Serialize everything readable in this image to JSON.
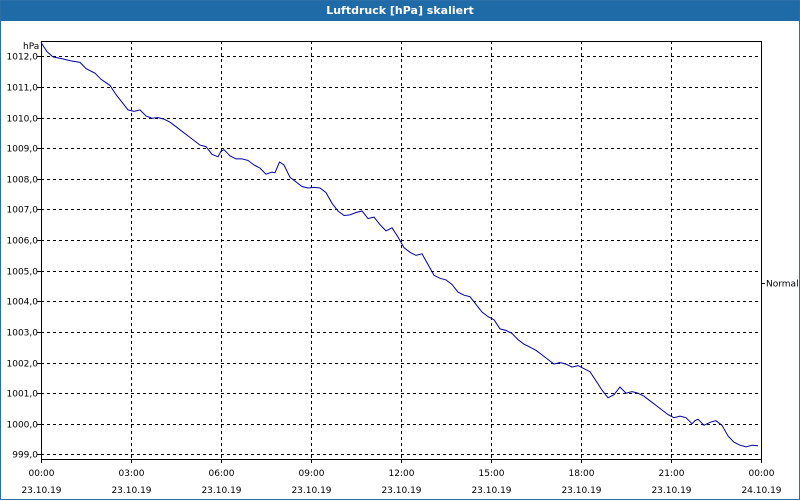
{
  "window": {
    "title": "Luftdruck [hPa] skaliert"
  },
  "colors": {
    "title_bar": "#1f6ba8",
    "series_line": "#0000a0",
    "grid": "#000000"
  },
  "chart_data": {
    "type": "line",
    "title": "Luftdruck [hPa] skaliert",
    "ylabel": "hPa",
    "xlabel": "",
    "ylim": [
      998.85,
      1012.5
    ],
    "xlim_hours": [
      0,
      24
    ],
    "grid": true,
    "y_ticks": [
      "999,0",
      "1000,0",
      "1001,0",
      "1002,0",
      "1003,0",
      "1004,0",
      "1005,0",
      "1006,0",
      "1007,0",
      "1008,0",
      "1009,0",
      "1010,0",
      "1011,0",
      "1012,0"
    ],
    "x_ticks": [
      {
        "time": "00:00",
        "date": "23.10.19"
      },
      {
        "time": "03:00",
        "date": "23.10.19"
      },
      {
        "time": "06:00",
        "date": "23.10.19"
      },
      {
        "time": "09:00",
        "date": "23.10.19"
      },
      {
        "time": "12:00",
        "date": "23.10.19"
      },
      {
        "time": "15:00",
        "date": "23.10.19"
      },
      {
        "time": "18:00",
        "date": "23.10.19"
      },
      {
        "time": "21:00",
        "date": "23.10.19"
      },
      {
        "time": "00:00",
        "date": "24.10.19"
      }
    ],
    "right_label": {
      "text": "Normal",
      "value": 1004.6
    },
    "series": [
      {
        "points": [
          [
            0.0,
            1012.45
          ],
          [
            0.2,
            1012.15
          ],
          [
            0.4,
            1011.98
          ],
          [
            0.7,
            1011.92
          ],
          [
            1.0,
            1011.85
          ],
          [
            1.3,
            1011.8
          ],
          [
            1.5,
            1011.6
          ],
          [
            1.8,
            1011.45
          ],
          [
            2.0,
            1011.25
          ],
          [
            2.3,
            1011.05
          ],
          [
            2.5,
            1010.75
          ],
          [
            2.7,
            1010.5
          ],
          [
            2.9,
            1010.25
          ],
          [
            3.1,
            1010.2
          ],
          [
            3.3,
            1010.25
          ],
          [
            3.5,
            1010.05
          ],
          [
            3.7,
            1009.98
          ],
          [
            3.9,
            1010.0
          ],
          [
            4.1,
            1009.95
          ],
          [
            4.3,
            1009.85
          ],
          [
            4.5,
            1009.7
          ],
          [
            4.7,
            1009.55
          ],
          [
            4.9,
            1009.4
          ],
          [
            5.1,
            1009.25
          ],
          [
            5.3,
            1009.1
          ],
          [
            5.5,
            1009.05
          ],
          [
            5.7,
            1008.8
          ],
          [
            5.9,
            1008.72
          ],
          [
            6.0,
            1008.9
          ],
          [
            6.1,
            1008.95
          ],
          [
            6.3,
            1008.75
          ],
          [
            6.5,
            1008.65
          ],
          [
            6.7,
            1008.65
          ],
          [
            6.9,
            1008.6
          ],
          [
            7.1,
            1008.45
          ],
          [
            7.3,
            1008.35
          ],
          [
            7.5,
            1008.15
          ],
          [
            7.7,
            1008.22
          ],
          [
            7.8,
            1008.2
          ],
          [
            7.95,
            1008.55
          ],
          [
            8.1,
            1008.45
          ],
          [
            8.3,
            1008.05
          ],
          [
            8.5,
            1007.9
          ],
          [
            8.7,
            1007.75
          ],
          [
            8.9,
            1007.7
          ],
          [
            9.1,
            1007.72
          ],
          [
            9.3,
            1007.7
          ],
          [
            9.5,
            1007.55
          ],
          [
            9.7,
            1007.2
          ],
          [
            9.9,
            1006.95
          ],
          [
            10.1,
            1006.8
          ],
          [
            10.3,
            1006.82
          ],
          [
            10.5,
            1006.9
          ],
          [
            10.7,
            1006.95
          ],
          [
            10.9,
            1006.7
          ],
          [
            11.1,
            1006.75
          ],
          [
            11.3,
            1006.5
          ],
          [
            11.5,
            1006.3
          ],
          [
            11.7,
            1006.4
          ],
          [
            11.9,
            1006.1
          ],
          [
            12.1,
            1005.75
          ],
          [
            12.3,
            1005.6
          ],
          [
            12.5,
            1005.5
          ],
          [
            12.7,
            1005.55
          ],
          [
            12.9,
            1005.2
          ],
          [
            13.1,
            1004.85
          ],
          [
            13.3,
            1004.75
          ],
          [
            13.5,
            1004.7
          ],
          [
            13.7,
            1004.55
          ],
          [
            13.9,
            1004.3
          ],
          [
            14.1,
            1004.2
          ],
          [
            14.3,
            1004.15
          ],
          [
            14.5,
            1003.9
          ],
          [
            14.7,
            1003.65
          ],
          [
            14.9,
            1003.5
          ],
          [
            15.1,
            1003.4
          ],
          [
            15.3,
            1003.1
          ],
          [
            15.5,
            1003.05
          ],
          [
            15.7,
            1002.95
          ],
          [
            15.9,
            1002.75
          ],
          [
            16.1,
            1002.6
          ],
          [
            16.3,
            1002.5
          ],
          [
            16.5,
            1002.4
          ],
          [
            16.7,
            1002.25
          ],
          [
            16.9,
            1002.1
          ],
          [
            17.1,
            1001.95
          ],
          [
            17.3,
            1002.0
          ],
          [
            17.5,
            1001.95
          ],
          [
            17.7,
            1001.85
          ],
          [
            17.9,
            1001.9
          ],
          [
            18.1,
            1001.8
          ],
          [
            18.3,
            1001.7
          ],
          [
            18.5,
            1001.4
          ],
          [
            18.7,
            1001.1
          ],
          [
            18.9,
            1000.85
          ],
          [
            19.1,
            1000.95
          ],
          [
            19.3,
            1001.2
          ],
          [
            19.5,
            1001.0
          ],
          [
            19.7,
            1001.05
          ],
          [
            19.9,
            1001.0
          ],
          [
            20.1,
            1000.9
          ],
          [
            20.3,
            1000.75
          ],
          [
            20.5,
            1000.6
          ],
          [
            20.7,
            1000.45
          ],
          [
            20.9,
            1000.3
          ],
          [
            21.1,
            1000.2
          ],
          [
            21.3,
            1000.25
          ],
          [
            21.5,
            1000.2
          ],
          [
            21.7,
            1000.0
          ],
          [
            21.8,
            1000.1
          ],
          [
            21.9,
            1000.15
          ],
          [
            22.1,
            999.95
          ],
          [
            22.3,
            1000.05
          ],
          [
            22.5,
            1000.1
          ],
          [
            22.7,
            999.95
          ],
          [
            22.9,
            999.6
          ],
          [
            23.1,
            999.4
          ],
          [
            23.3,
            999.3
          ],
          [
            23.5,
            999.25
          ],
          [
            23.7,
            999.3
          ],
          [
            23.9,
            999.28
          ]
        ]
      }
    ]
  }
}
